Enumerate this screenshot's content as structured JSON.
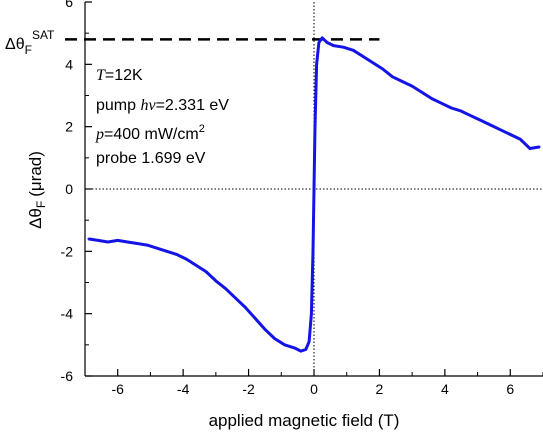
{
  "chart_data": {
    "type": "line",
    "xlabel": "applied magnetic field (T)",
    "ylabel_main": "Δθ",
    "ylabel_sub": "F",
    "ylabel_unit": "(μrad)",
    "xlim": [
      -7,
      7
    ],
    "ylim": [
      -6,
      6
    ],
    "x_ticks": [
      -6,
      -4,
      -2,
      0,
      2,
      4,
      6
    ],
    "y_ticks": [
      -6,
      -4,
      -2,
      0,
      2,
      4,
      6
    ],
    "series_color": "#1414e6",
    "saturation": {
      "value": 4.8,
      "x_start": -7,
      "x_end": 2,
      "label_main": "Δθ",
      "label_sub": "F",
      "label_sup": "SAT"
    },
    "annotations": {
      "temp_var": "T",
      "temp_val": "=12K",
      "pump_prefix": "pump ",
      "pump_var": "hν",
      "pump_val": "=2.331 eV",
      "power_var": "p",
      "power_val": "=400 mW/cm",
      "power_sup": "2",
      "probe": "probe 1.699 eV"
    },
    "x": [
      -6.9,
      -6.6,
      -6.3,
      -6.0,
      -5.7,
      -5.4,
      -5.1,
      -4.8,
      -4.5,
      -4.2,
      -3.9,
      -3.6,
      -3.3,
      -3.0,
      -2.7,
      -2.4,
      -2.1,
      -1.8,
      -1.5,
      -1.2,
      -0.9,
      -0.6,
      -0.4,
      -0.25,
      -0.15,
      -0.08,
      -0.03,
      0.0,
      0.03,
      0.08,
      0.15,
      0.25,
      0.4,
      0.6,
      0.9,
      1.2,
      1.5,
      1.8,
      2.1,
      2.4,
      2.7,
      3.0,
      3.3,
      3.6,
      3.9,
      4.2,
      4.5,
      4.8,
      5.1,
      5.4,
      5.7,
      6.0,
      6.3,
      6.6,
      6.9
    ],
    "y": [
      -1.6,
      -1.65,
      -1.7,
      -1.65,
      -1.7,
      -1.75,
      -1.8,
      -1.9,
      -2.0,
      -2.1,
      -2.25,
      -2.45,
      -2.65,
      -2.95,
      -3.2,
      -3.5,
      -3.8,
      -4.15,
      -4.5,
      -4.8,
      -5.0,
      -5.1,
      -5.2,
      -5.15,
      -4.9,
      -4.0,
      -2.0,
      0.0,
      2.0,
      4.0,
      4.7,
      4.85,
      4.7,
      4.6,
      4.55,
      4.45,
      4.25,
      4.05,
      3.85,
      3.6,
      3.45,
      3.3,
      3.1,
      2.9,
      2.75,
      2.6,
      2.5,
      2.35,
      2.2,
      2.05,
      1.9,
      1.75,
      1.6,
      1.3,
      1.35
    ]
  }
}
